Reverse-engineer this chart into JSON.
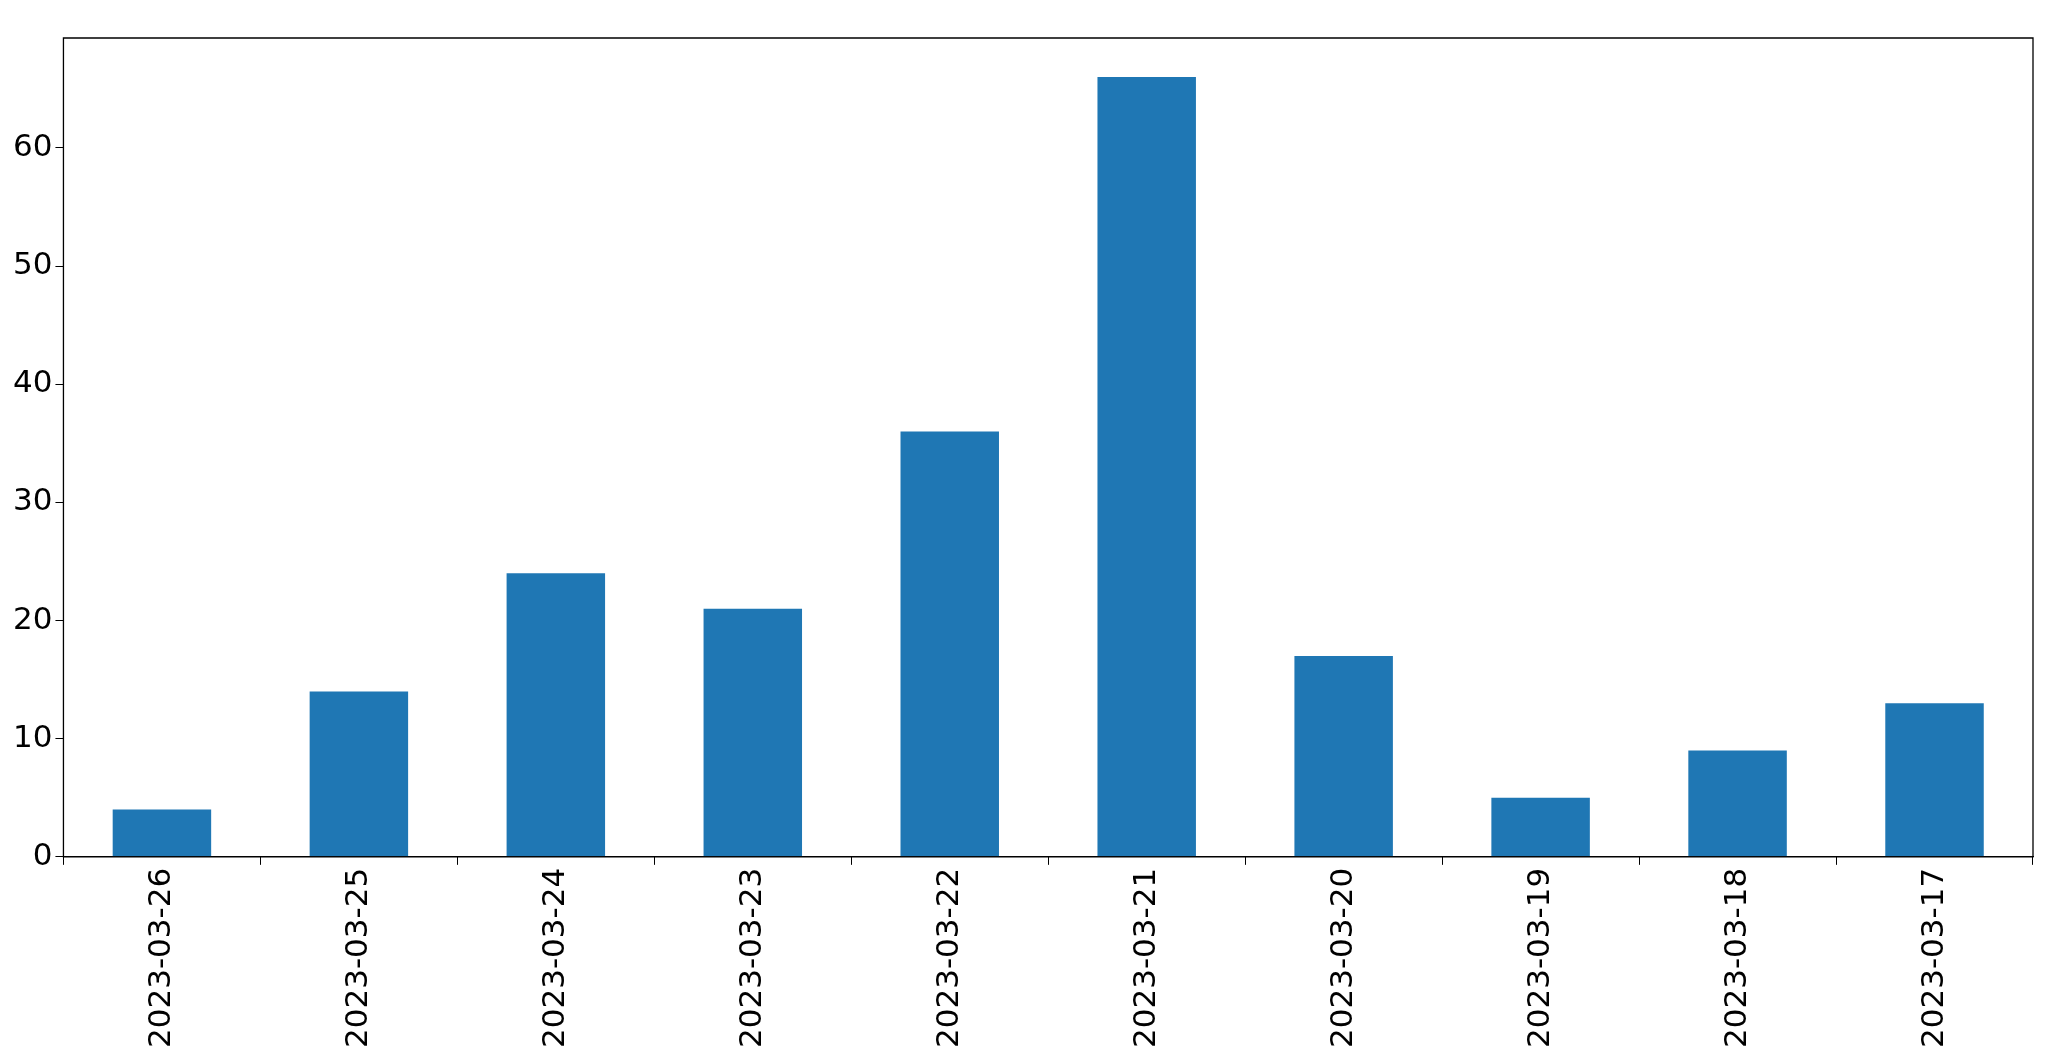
{
  "chart_data": {
    "type": "bar",
    "categories": [
      "2023-03-26",
      "2023-03-25",
      "2023-03-24",
      "2023-03-23",
      "2023-03-22",
      "2023-03-21",
      "2023-03-20",
      "2023-03-19",
      "2023-03-18",
      "2023-03-17"
    ],
    "values": [
      4,
      14,
      24,
      21,
      36,
      66,
      17,
      5,
      9,
      13
    ],
    "color": "#1f77b4",
    "ylim": [
      0,
      69.3
    ],
    "yticks": [
      0,
      10,
      20,
      30,
      40,
      50,
      60
    ],
    "grid": false
  }
}
